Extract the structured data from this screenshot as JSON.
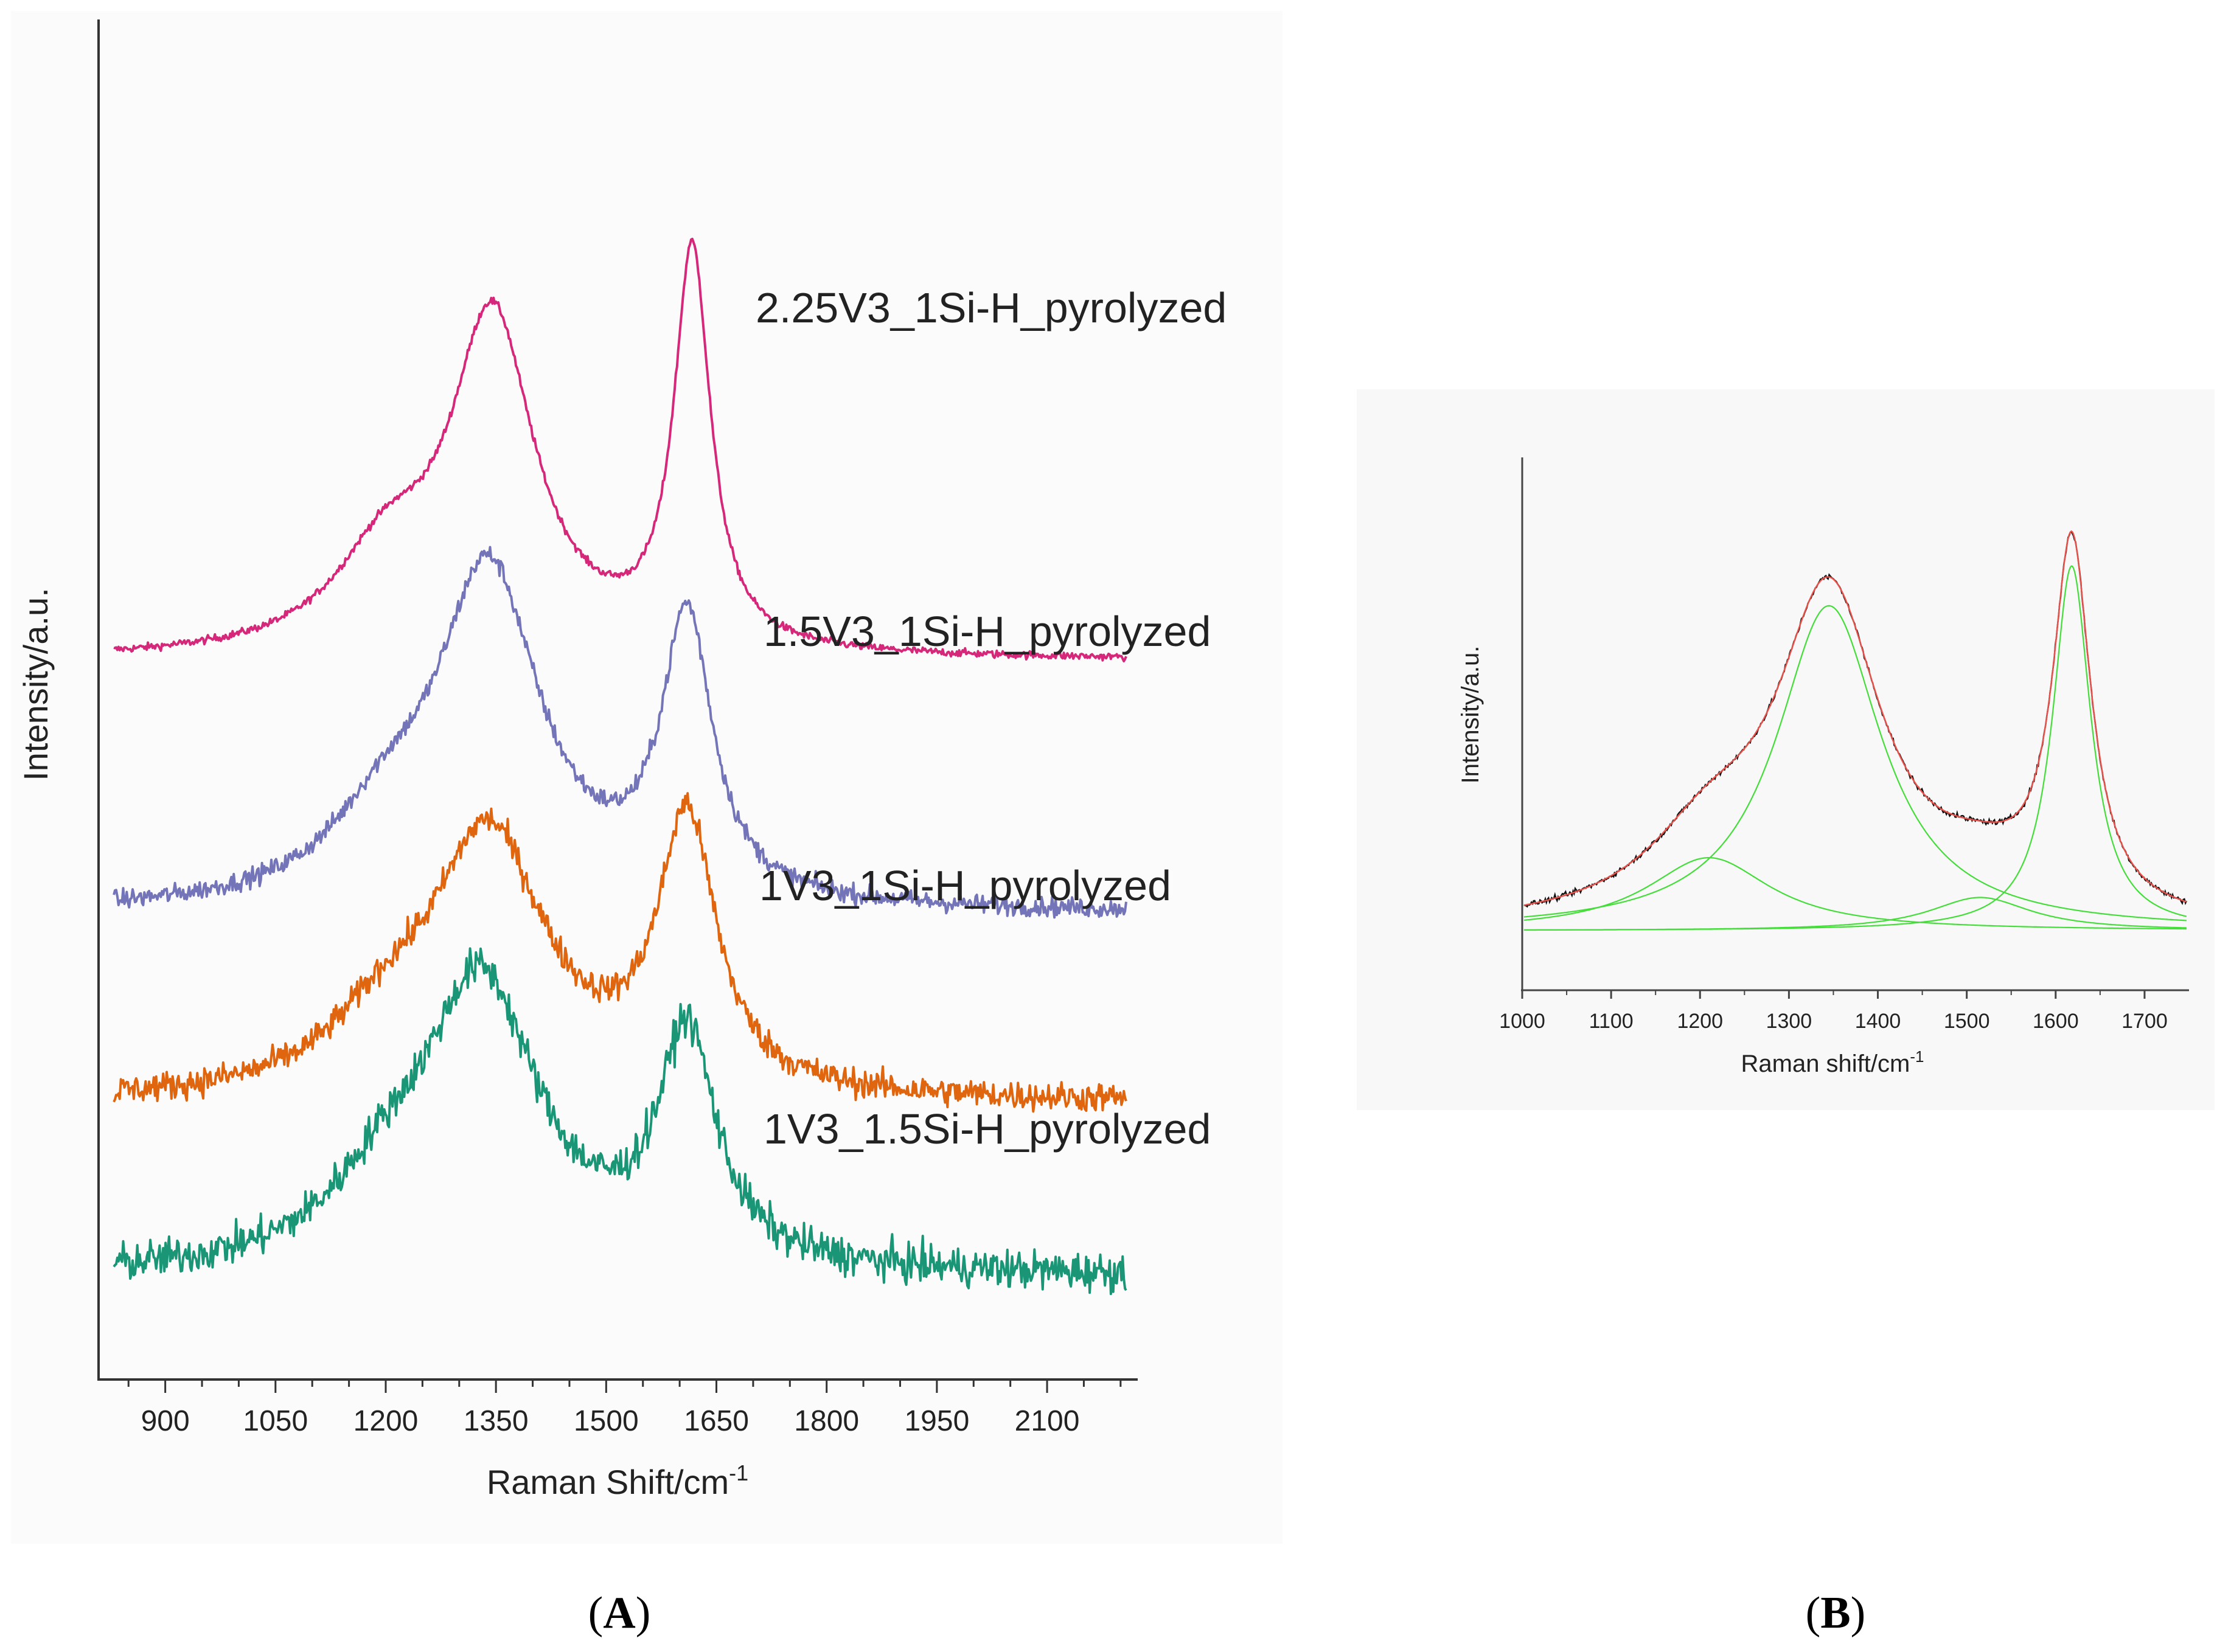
{
  "colors": {
    "pink": "#d6287a",
    "purple": "#7474b8",
    "orange": "#df650f",
    "teal": "#1a9676",
    "fit_green": "#44dd3a",
    "fit_red": "#e8524a",
    "data_black": "#111111"
  },
  "chart_data": [
    {
      "panel": "A",
      "type": "line",
      "caption": "A",
      "xlabel": "Raman Shift/cm",
      "xlabel_sup": "-1",
      "ylabel": "Intensity/a.u.",
      "xlim": [
        820,
        2220
      ],
      "xticks": [
        900,
        1050,
        1200,
        1350,
        1500,
        1650,
        1800,
        1950,
        2100
      ],
      "x_minor_step": 50,
      "stacked": true,
      "grid": false,
      "series": [
        {
          "name": "2.25V3_1Si-H_pyrolyzed",
          "color_key": "pink",
          "baseline": 1.95,
          "noise": 0.012,
          "peaks": [
            {
              "center": 1345,
              "height": 1.05,
              "width": 70
            },
            {
              "center": 1617,
              "height": 1.25,
              "width": 30
            },
            {
              "center": 1200,
              "height": 0.28,
              "width": 85
            }
          ]
        },
        {
          "name": "1.5V3_1Si-H_pyrolyzed",
          "color_key": "purple",
          "baseline": 1.15,
          "noise": 0.03,
          "peaks": [
            {
              "center": 1340,
              "height": 1.05,
              "width": 85
            },
            {
              "center": 1610,
              "height": 0.88,
              "width": 42
            },
            {
              "center": 1200,
              "height": 0.22,
              "width": 90
            }
          ]
        },
        {
          "name": "1V3_1Si-H_pyrolyzed",
          "color_key": "orange",
          "baseline": 0.55,
          "noise": 0.045,
          "peaks": [
            {
              "center": 1340,
              "height": 0.82,
              "width": 95
            },
            {
              "center": 1610,
              "height": 0.85,
              "width": 48
            },
            {
              "center": 1200,
              "height": 0.18,
              "width": 90
            }
          ]
        },
        {
          "name": "1V3_1.5Si-H_pyrolyzed",
          "color_key": "teal",
          "baseline": 0.0,
          "noise": 0.06,
          "peaks": [
            {
              "center": 1330,
              "height": 0.9,
              "width": 95
            },
            {
              "center": 1610,
              "height": 0.72,
              "width": 48
            },
            {
              "center": 1200,
              "height": 0.2,
              "width": 90
            }
          ]
        }
      ]
    },
    {
      "panel": "B",
      "type": "line",
      "caption": "B",
      "xlabel": "Raman shift/cm",
      "xlabel_sup": "-1",
      "ylabel": "Intensity/a.u.",
      "xlim": [
        1000,
        1750
      ],
      "xticks": [
        1000,
        1100,
        1200,
        1300,
        1400,
        1500,
        1600,
        1700
      ],
      "grid": false,
      "measured": {
        "color_key": "data_black",
        "noise": 0.008
      },
      "envelope": {
        "color_key": "fit_red"
      },
      "components_color_key": "fit_green",
      "components": [
        {
          "center": 1210,
          "height": 0.22,
          "width": 85
        },
        {
          "center": 1345,
          "height": 0.98,
          "width": 72
        },
        {
          "center": 1515,
          "height": 0.1,
          "width": 70
        },
        {
          "center": 1618,
          "height": 1.1,
          "width": 26
        }
      ]
    }
  ]
}
